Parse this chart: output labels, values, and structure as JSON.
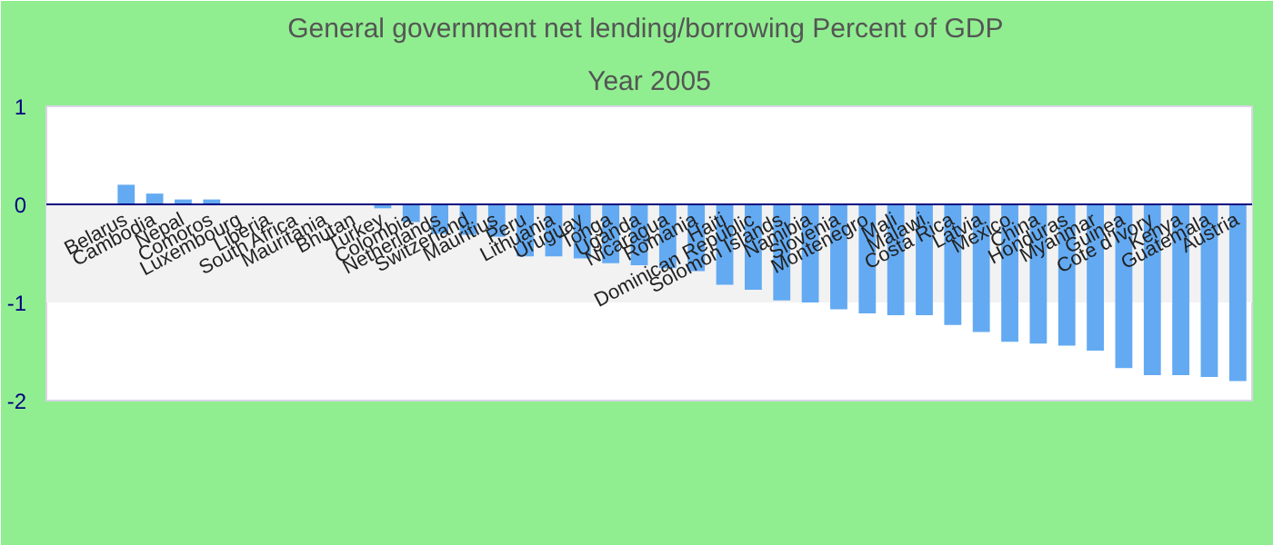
{
  "chart_data": {
    "type": "bar",
    "title": "General government net lending/borrowing  Percent of GDP",
    "subtitle": "Year 2005",
    "categories": [
      "Belarus",
      "Cambodia",
      "Nepal",
      "Comoros",
      "Luxembourg",
      "Liberia",
      "South Africa",
      "Mauritania",
      "Bhutan",
      "Turkey",
      "Colombia",
      "Netherlands",
      "Switzerland",
      "Mauritius",
      "Peru",
      "Lithuania",
      "Uruguay",
      "Tonga",
      "Uganda",
      "Nicaragua",
      "Romania",
      "Haiti",
      "Dominican Republic",
      "Solomon Islands",
      "Namibia",
      "Slovenia",
      "Montenegro",
      "Mali",
      "Malawi",
      "Costa Rica",
      "Latvia",
      "Mexico",
      "China",
      "Honduras",
      "Myanmar",
      "Guinea",
      "Cote d'Ivory",
      "Kenya",
      "Guatemala",
      "Austria"
    ],
    "values": [
      0.2,
      0.11,
      0.05,
      0.05,
      0,
      0,
      0,
      0,
      0,
      -0.04,
      -0.18,
      -0.3,
      -0.31,
      -0.33,
      -0.53,
      -0.53,
      -0.55,
      -0.6,
      -0.62,
      -0.65,
      -0.68,
      -0.82,
      -0.87,
      -0.98,
      -1.0,
      -1.07,
      -1.11,
      -1.13,
      -1.13,
      -1.23,
      -1.3,
      -1.4,
      -1.42,
      -1.44,
      -1.49,
      -1.67,
      -1.74,
      -1.74,
      -1.76,
      -1.8
    ],
    "color": "#63aaf2",
    "ylim": [
      -2,
      1
    ],
    "yticks": [
      -2,
      -1,
      0,
      1
    ]
  }
}
